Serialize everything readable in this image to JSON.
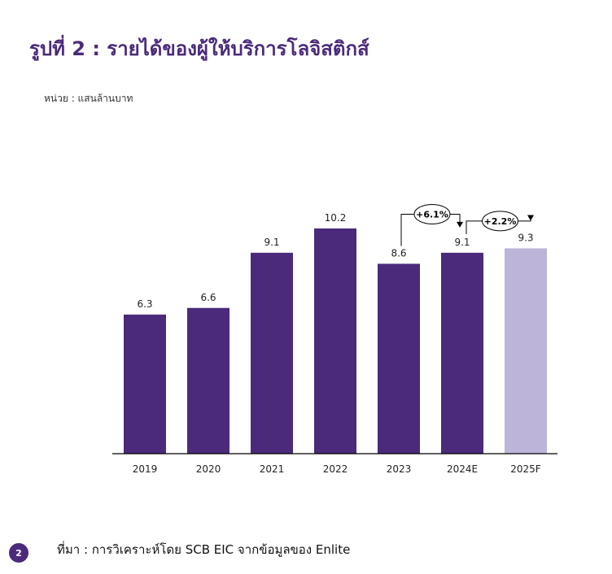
{
  "title": "รูปที่ 2 : รายได้ของผู้ให้บริการโลจิสติกส์",
  "unit_label": "หน่วย : แสนล้านบาท",
  "source": "ที่มา : การวิเคราะห์โดย SCB EIC จากข้อมูลของ Enlite",
  "page_number": "2",
  "colors": {
    "title": "#4b2a7b",
    "bar_actual": "#4b2a7b",
    "bar_forecast": "#bcb5d9",
    "axis": "#000000"
  },
  "chart_data": {
    "type": "bar",
    "categories": [
      "2019",
      "2020",
      "2021",
      "2022",
      "2023",
      "2024E",
      "2025F"
    ],
    "values": [
      6.3,
      6.6,
      9.1,
      10.2,
      8.6,
      9.1,
      9.3
    ],
    "value_labels": [
      "6.3",
      "6.6",
      "9.1",
      "10.2",
      "8.6",
      "9.1",
      "9.3"
    ],
    "forecast_flags": [
      false,
      false,
      false,
      false,
      false,
      false,
      true
    ],
    "ylim": [
      0,
      10.2
    ],
    "grid": false,
    "annotations": [
      {
        "from": "2023",
        "to": "2024E",
        "text": "+6.1%"
      },
      {
        "from": "2024E",
        "to": "2025F",
        "text": "+2.2%"
      }
    ]
  }
}
